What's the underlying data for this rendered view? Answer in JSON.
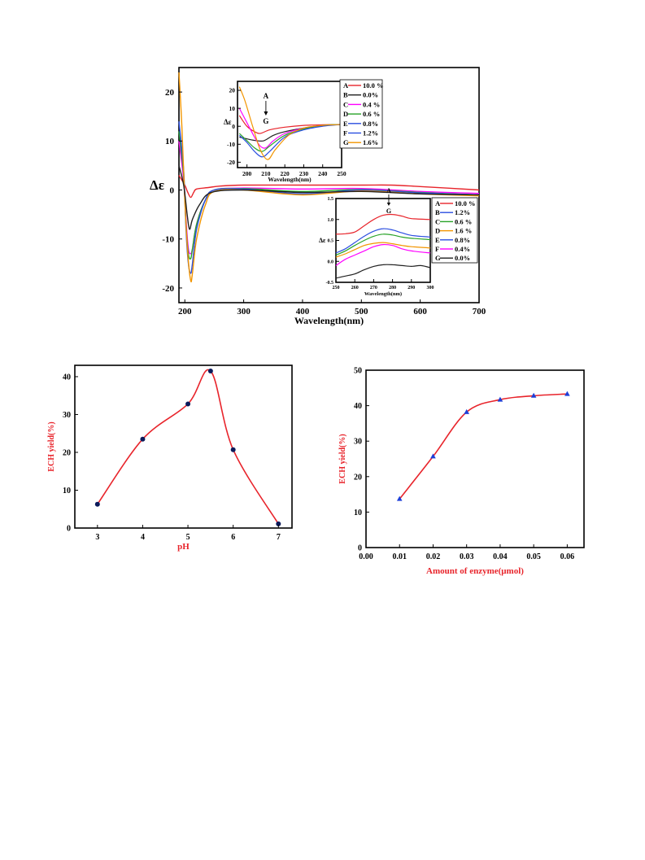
{
  "chart_data": [
    {
      "id": "cd_main",
      "type": "line",
      "xlabel": "Wavelength(nm)",
      "ylabel": "Δε",
      "xlim": [
        190,
        700
      ],
      "ylim": [
        -23,
        25
      ],
      "xticks": [
        200,
        300,
        400,
        500,
        600,
        700
      ],
      "yticks": [
        -20,
        -10,
        0,
        10,
        20
      ],
      "grid": false,
      "curves": [
        {
          "color": "#e8242b",
          "points": [
            [
              190,
              3
            ],
            [
              200,
              1
            ],
            [
              205,
              -0.5
            ],
            [
              210,
              -1.5
            ],
            [
              215,
              -0.5
            ],
            [
              220,
              0.2
            ],
            [
              240,
              0.5
            ],
            [
              260,
              0.8
            ],
            [
              300,
              1
            ],
            [
              400,
              1
            ],
            [
              500,
              1
            ],
            [
              550,
              1
            ],
            [
              600,
              0.7
            ],
            [
              700,
              0
            ]
          ]
        },
        {
          "color": "#ff00ff",
          "points": [
            [
              190,
              10
            ],
            [
              198,
              2
            ],
            [
              202,
              -6
            ],
            [
              206,
              -12
            ],
            [
              210,
              -13
            ],
            [
              213,
              -12
            ],
            [
              220,
              -7
            ],
            [
              235,
              -2
            ],
            [
              250,
              0
            ],
            [
              300,
              0.4
            ],
            [
              400,
              0.2
            ],
            [
              500,
              0.3
            ],
            [
              600,
              -0.3
            ],
            [
              700,
              -0.7
            ]
          ]
        },
        {
          "color": "#29a329",
          "points": [
            [
              190,
              12
            ],
            [
              198,
              3
            ],
            [
              202,
              -7
            ],
            [
              206,
              -13
            ],
            [
              210,
              -14
            ],
            [
              213,
              -12
            ],
            [
              220,
              -7
            ],
            [
              235,
              -2
            ],
            [
              250,
              0
            ],
            [
              300,
              0.3
            ],
            [
              400,
              -0.3
            ],
            [
              500,
              0.1
            ],
            [
              600,
              -0.5
            ],
            [
              700,
              -1
            ]
          ]
        },
        {
          "color": "#2b4ee0",
          "points": [
            [
              190,
              14
            ],
            [
              198,
              4
            ],
            [
              202,
              -8
            ],
            [
              206,
              -15
            ],
            [
              210,
              -17
            ],
            [
              213,
              -15
            ],
            [
              220,
              -8
            ],
            [
              235,
              -2
            ],
            [
              250,
              0
            ],
            [
              300,
              0.2
            ],
            [
              400,
              -0.8
            ],
            [
              500,
              0
            ],
            [
              600,
              -0.6
            ],
            [
              700,
              -1
            ]
          ]
        },
        {
          "color": "#f29500",
          "points": [
            [
              190,
              24
            ],
            [
              195,
              13
            ],
            [
              200,
              -2
            ],
            [
              205,
              -13
            ],
            [
              210,
              -18.5
            ],
            [
              213,
              -17
            ],
            [
              220,
              -10
            ],
            [
              235,
              -3
            ],
            [
              250,
              -0.3
            ],
            [
              300,
              0
            ],
            [
              400,
              -1
            ],
            [
              500,
              -0.2
            ],
            [
              600,
              -0.8
            ],
            [
              700,
              -1.2
            ]
          ]
        },
        {
          "color": "#222222",
          "points": [
            [
              190,
              5
            ],
            [
              198,
              1
            ],
            [
              204,
              -5
            ],
            [
              208,
              -8
            ],
            [
              213,
              -6
            ],
            [
              225,
              -3
            ],
            [
              245,
              -0.5
            ],
            [
              300,
              0
            ],
            [
              400,
              -0.5
            ],
            [
              500,
              -0.3
            ],
            [
              600,
              -0.8
            ],
            [
              700,
              -1
            ]
          ]
        }
      ]
    },
    {
      "id": "cd_inset_far_uv",
      "type": "line",
      "xlabel": "Wavelength(nm)",
      "ylabel": "Δε",
      "xlim": [
        195,
        250
      ],
      "ylim": [
        -23,
        25
      ],
      "xticks": [
        200,
        210,
        220,
        230,
        240,
        250
      ],
      "yticks": [
        -20,
        -10,
        0,
        10,
        20
      ],
      "annotation_top": "A",
      "annotation_bottom": "G",
      "legend": [
        {
          "letter": "A",
          "color": "#e8242b",
          "label": "10.0 %"
        },
        {
          "letter": "B",
          "color": "#222222",
          "label": "0.0%"
        },
        {
          "letter": "C",
          "color": "#ff00ff",
          "label": "0.4 %"
        },
        {
          "letter": "D",
          "color": "#29a329",
          "label": "0.6 %"
        },
        {
          "letter": "E",
          "color": "#2b4ee0",
          "label": "0.8%"
        },
        {
          "letter": "F",
          "color": "#2b4ee0",
          "label": "1.2%"
        },
        {
          "letter": "G",
          "color": "#f29500",
          "label": "1.6%"
        }
      ],
      "curves": [
        {
          "color": "#e8242b",
          "points": [
            [
              196,
              6
            ],
            [
              200,
              0
            ],
            [
              204,
              -3
            ],
            [
              207,
              -4
            ],
            [
              212,
              -2
            ],
            [
              220,
              -0.5
            ],
            [
              230,
              0.5
            ],
            [
              240,
              0.8
            ],
            [
              250,
              1
            ]
          ]
        },
        {
          "color": "#222222",
          "points": [
            [
              196,
              -6
            ],
            [
              200,
              -7
            ],
            [
              205,
              -8
            ],
            [
              209,
              -8
            ],
            [
              214,
              -5
            ],
            [
              220,
              -3
            ],
            [
              230,
              -1
            ],
            [
              240,
              0.5
            ],
            [
              250,
              1
            ]
          ]
        },
        {
          "color": "#ff00ff",
          "points": [
            [
              196,
              10
            ],
            [
              200,
              2
            ],
            [
              204,
              -6
            ],
            [
              207,
              -11
            ],
            [
              210,
              -12
            ],
            [
              214,
              -8
            ],
            [
              220,
              -4
            ],
            [
              230,
              -1
            ],
            [
              240,
              0.5
            ],
            [
              250,
              1
            ]
          ]
        },
        {
          "color": "#29a329",
          "points": [
            [
              196,
              -4
            ],
            [
              200,
              -8
            ],
            [
              204,
              -12
            ],
            [
              208,
              -14
            ],
            [
              212,
              -11
            ],
            [
              220,
              -5
            ],
            [
              230,
              -1.5
            ],
            [
              240,
              0.5
            ],
            [
              250,
              1
            ]
          ]
        },
        {
          "color": "#2b4ee0",
          "points": [
            [
              196,
              -5
            ],
            [
              200,
              -9
            ],
            [
              204,
              -14
            ],
            [
              208,
              -17
            ],
            [
              212,
              -14
            ],
            [
              220,
              -6
            ],
            [
              230,
              -2
            ],
            [
              240,
              0
            ],
            [
              250,
              1
            ]
          ]
        },
        {
          "color": "#f29500",
          "points": [
            [
              196,
              22
            ],
            [
              199,
              14
            ],
            [
              203,
              0
            ],
            [
              207,
              -13
            ],
            [
              211,
              -18.5
            ],
            [
              215,
              -13
            ],
            [
              222,
              -5
            ],
            [
              230,
              -1
            ],
            [
              240,
              0.5
            ],
            [
              250,
              1
            ]
          ]
        }
      ]
    },
    {
      "id": "cd_inset_near_uv",
      "type": "line",
      "xlabel": "Wavelength(nm)",
      "ylabel": "Δε",
      "xlim": [
        250,
        300
      ],
      "ylim": [
        -0.5,
        1.5
      ],
      "xticks": [
        250,
        260,
        270,
        280,
        290,
        300
      ],
      "yticks": [
        -0.5,
        0.0,
        0.5,
        1.0,
        1.5
      ],
      "annotation_top": "A",
      "annotation_bottom": "G",
      "legend": [
        {
          "letter": "A",
          "color": "#e8242b",
          "label": "10.0 %"
        },
        {
          "letter": "B",
          "color": "#2b4ee0",
          "label": "1.2%"
        },
        {
          "letter": "C",
          "color": "#29a329",
          "label": "0.6 %"
        },
        {
          "letter": "D",
          "color": "#f29500",
          "label": "1.6 %"
        },
        {
          "letter": "E",
          "color": "#2b4ee0",
          "label": "0.8%"
        },
        {
          "letter": "F",
          "color": "#ff00ff",
          "label": "0.4%"
        },
        {
          "letter": "G",
          "color": "#222222",
          "label": "0.0%"
        }
      ],
      "curves": [
        {
          "color": "#e8242b",
          "points": [
            [
              250,
              0.65
            ],
            [
              255,
              0.66
            ],
            [
              260,
              0.7
            ],
            [
              265,
              0.85
            ],
            [
              270,
              1.0
            ],
            [
              275,
              1.1
            ],
            [
              280,
              1.12
            ],
            [
              285,
              1.08
            ],
            [
              290,
              1.02
            ],
            [
              300,
              1.0
            ]
          ]
        },
        {
          "color": "#2b4ee0",
          "points": [
            [
              250,
              0.2
            ],
            [
              255,
              0.3
            ],
            [
              260,
              0.45
            ],
            [
              265,
              0.6
            ],
            [
              270,
              0.72
            ],
            [
              275,
              0.78
            ],
            [
              280,
              0.75
            ],
            [
              285,
              0.68
            ],
            [
              290,
              0.62
            ],
            [
              300,
              0.58
            ]
          ]
        },
        {
          "color": "#29a329",
          "points": [
            [
              250,
              0.15
            ],
            [
              255,
              0.25
            ],
            [
              260,
              0.38
            ],
            [
              265,
              0.5
            ],
            [
              270,
              0.6
            ],
            [
              275,
              0.65
            ],
            [
              280,
              0.63
            ],
            [
              285,
              0.58
            ],
            [
              290,
              0.55
            ],
            [
              300,
              0.52
            ]
          ]
        },
        {
          "color": "#f29500",
          "points": [
            [
              250,
              0.1
            ],
            [
              255,
              0.18
            ],
            [
              260,
              0.28
            ],
            [
              265,
              0.38
            ],
            [
              270,
              0.43
            ],
            [
              275,
              0.45
            ],
            [
              280,
              0.42
            ],
            [
              285,
              0.38
            ],
            [
              290,
              0.35
            ],
            [
              300,
              0.32
            ]
          ]
        },
        {
          "color": "#ff00ff",
          "points": [
            [
              250,
              -0.1
            ],
            [
              255,
              0.05
            ],
            [
              260,
              0.15
            ],
            [
              265,
              0.25
            ],
            [
              270,
              0.35
            ],
            [
              275,
              0.4
            ],
            [
              280,
              0.38
            ],
            [
              285,
              0.3
            ],
            [
              290,
              0.25
            ],
            [
              300,
              0.2
            ]
          ]
        },
        {
          "color": "#222222",
          "points": [
            [
              250,
              -0.4
            ],
            [
              255,
              -0.35
            ],
            [
              260,
              -0.3
            ],
            [
              265,
              -0.2
            ],
            [
              270,
              -0.12
            ],
            [
              275,
              -0.08
            ],
            [
              280,
              -0.08
            ],
            [
              285,
              -0.1
            ],
            [
              290,
              -0.12
            ],
            [
              295,
              -0.1
            ],
            [
              300,
              -0.15
            ]
          ]
        }
      ]
    },
    {
      "id": "ph_chart",
      "type": "line",
      "xlabel": "pH",
      "ylabel": "ECH yield(%)",
      "xlim": [
        2.5,
        7.3
      ],
      "ylim": [
        0,
        43
      ],
      "xticks": [
        3,
        4,
        5,
        6,
        7
      ],
      "yticks": [
        0,
        10,
        20,
        30,
        40
      ],
      "x": [
        3,
        4,
        5,
        5.5,
        6,
        7
      ],
      "y": [
        6.3,
        23.5,
        32.8,
        41.5,
        20.7,
        1.1
      ],
      "marker": "circle",
      "line_color": "#e8242b",
      "marker_color": "#0b1a5a"
    },
    {
      "id": "enzyme_chart",
      "type": "line",
      "xlabel": "Amount of enzyme(μmol)",
      "ylabel": "ECH yield(%)",
      "xlim": [
        0.0,
        0.065
      ],
      "ylim": [
        0,
        50
      ],
      "xticks": [
        0.0,
        0.01,
        0.02,
        0.03,
        0.04,
        0.05,
        0.06
      ],
      "yticks": [
        0,
        10,
        20,
        30,
        40,
        50
      ],
      "x": [
        0.01,
        0.02,
        0.03,
        0.04,
        0.05,
        0.06
      ],
      "y": [
        13.7,
        25.7,
        38.2,
        41.7,
        42.8,
        43.3
      ],
      "marker": "triangle",
      "line_color": "#e8242b",
      "marker_color": "#1d3fd8"
    }
  ]
}
